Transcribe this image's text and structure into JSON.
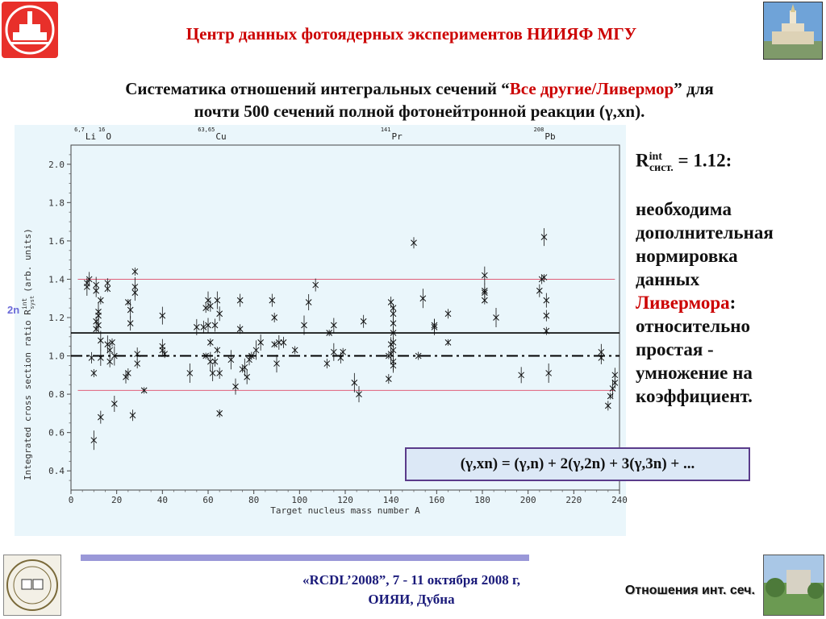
{
  "header": {
    "title": "Центр данных фотоядерных экспериментов НИИЯФ МГУ"
  },
  "subtitle": {
    "part1": "Систематика отношений интегральных сечений “",
    "highlight": "Все другие/Ливермор",
    "part2": "” для",
    "line2": "почти 500 сечений полной фотонейтронной реакции (γ,xn)."
  },
  "side_mark": "2n",
  "right_panel": {
    "r_main": "R",
    "r_sup": "int",
    "r_sub": "сист.",
    "r_value": " = 1.12:",
    "line1": "необходима",
    "line2": "дополнительная",
    "line3": "нормировка",
    "line4": "данных",
    "livermore": "Ливермора",
    "colon": ":",
    "line6": "относительно",
    "line7": "простая -",
    "line8": "умножение на",
    "line9": "коэффициент."
  },
  "formula": "(γ,xn) = (γ,n) + 2(γ,2n) + 3(γ,3n) + ...",
  "footer": {
    "conference_line1": "«RCDL’2008”,  7 - 11 октября 2008 г,",
    "conference_line2": "ОИЯИ, Дубна",
    "slide_label": "Отношения инт. сеч."
  },
  "colors": {
    "title_red": "#cc0000",
    "pink_lines": "#e0607a",
    "formula_border": "#5a3b8a",
    "footer_bar": "#9a98d8"
  },
  "chart_data": {
    "type": "scatter",
    "xlabel": "Target nucleus mass number A",
    "ylabel": "Integrated cross section ratio R",
    "ylabel_sup": "int",
    "ylabel_sub": "syst",
    "ylabel_tail": "(arb. units)",
    "xlim": [
      0,
      240
    ],
    "ylim": [
      0.3,
      2.1
    ],
    "xticks": [
      0,
      20,
      40,
      60,
      80,
      100,
      120,
      140,
      160,
      180,
      200,
      220,
      240
    ],
    "yticks": [
      0.4,
      0.6,
      0.8,
      1.0,
      1.2,
      1.4,
      1.6,
      1.8,
      2.0
    ],
    "ytick_labels": [
      "0.4",
      "0.6",
      "0.8",
      "1.0",
      "1.2",
      "1.4",
      "1.6",
      "1.8",
      "2.0"
    ],
    "grid": false,
    "reference_lines": [
      {
        "y": 1.12,
        "style": "solid",
        "color": "#000000"
      },
      {
        "y": 1.0,
        "style": "dashdot",
        "color": "#000000"
      },
      {
        "y": 1.4,
        "style": "solid",
        "color": "#e0607a"
      },
      {
        "y": 0.82,
        "style": "solid",
        "color": "#e0607a"
      }
    ],
    "nuclide_labels": [
      {
        "x": 7,
        "sup": "6,7",
        "label": "Li"
      },
      {
        "x": 16,
        "sup": "16",
        "label": "O"
      },
      {
        "x": 64,
        "sup": "63,65",
        "label": "Cu"
      },
      {
        "x": 141,
        "sup": "141",
        "label": "Pr"
      },
      {
        "x": 208,
        "sup": "208",
        "label": "Pb"
      }
    ],
    "points": [
      [
        7,
        1.38
      ],
      [
        7,
        1.36
      ],
      [
        8,
        1.4
      ],
      [
        9,
        0.99
      ],
      [
        10,
        0.91
      ],
      [
        10,
        0.56
      ],
      [
        11,
        1.37
      ],
      [
        11,
        1.34
      ],
      [
        11,
        1.18
      ],
      [
        11,
        1.14
      ],
      [
        12,
        1.23
      ],
      [
        12,
        1.21
      ],
      [
        12,
        1.16
      ],
      [
        13,
        1.29
      ],
      [
        13,
        1.08
      ],
      [
        13,
        0.99
      ],
      [
        13,
        0.68
      ],
      [
        16,
        1.38
      ],
      [
        16,
        1.35
      ],
      [
        16,
        1.06
      ],
      [
        17,
        1.03
      ],
      [
        17,
        0.97
      ],
      [
        18,
        1.07
      ],
      [
        19,
        1.0
      ],
      [
        19,
        0.75
      ],
      [
        24,
        0.89
      ],
      [
        25,
        0.91
      ],
      [
        25,
        1.28
      ],
      [
        26,
        1.24
      ],
      [
        26,
        1.17
      ],
      [
        27,
        0.69
      ],
      [
        28,
        1.44
      ],
      [
        28,
        1.36
      ],
      [
        28,
        1.33
      ],
      [
        29,
        1.01
      ],
      [
        29,
        0.96
      ],
      [
        32,
        0.82
      ],
      [
        40,
        1.21
      ],
      [
        40,
        1.05
      ],
      [
        40,
        1.03
      ],
      [
        41,
        1.01
      ],
      [
        52,
        0.91
      ],
      [
        55,
        1.15
      ],
      [
        58,
        1.15
      ],
      [
        59,
        1.25
      ],
      [
        59,
        1.0
      ],
      [
        60,
        1.29
      ],
      [
        60,
        1.16
      ],
      [
        61,
        1.26
      ],
      [
        61,
        1.07
      ],
      [
        61,
        0.97
      ],
      [
        62,
        0.91
      ],
      [
        63,
        1.16
      ],
      [
        63,
        0.97
      ],
      [
        64,
        1.03
      ],
      [
        64,
        1.29
      ],
      [
        65,
        1.22
      ],
      [
        65,
        0.91
      ],
      [
        65,
        0.7
      ],
      [
        70,
        0.98
      ],
      [
        72,
        0.84
      ],
      [
        74,
        1.29
      ],
      [
        74,
        1.14
      ],
      [
        75,
        0.93
      ],
      [
        76,
        0.94
      ],
      [
        77,
        0.89
      ],
      [
        78,
        0.98
      ],
      [
        79,
        1.0
      ],
      [
        81,
        1.03
      ],
      [
        83,
        1.07
      ],
      [
        88,
        1.29
      ],
      [
        89,
        1.2
      ],
      [
        89,
        1.06
      ],
      [
        90,
        0.96
      ],
      [
        91,
        1.07
      ],
      [
        93,
        1.07
      ],
      [
        98,
        1.03
      ],
      [
        102,
        1.16
      ],
      [
        104,
        1.28
      ],
      [
        107,
        1.37
      ],
      [
        112,
        0.96
      ],
      [
        113,
        1.12
      ],
      [
        115,
        1.02
      ],
      [
        115,
        1.16
      ],
      [
        118,
        0.99
      ],
      [
        119,
        1.02
      ],
      [
        124,
        0.86
      ],
      [
        126,
        0.8
      ],
      [
        128,
        1.18
      ],
      [
        139,
        0.88
      ],
      [
        139,
        1.0
      ],
      [
        140,
        1.01
      ],
      [
        140,
        1.06
      ],
      [
        140,
        1.28
      ],
      [
        141,
        1.25
      ],
      [
        141,
        1.22
      ],
      [
        141,
        1.17
      ],
      [
        141,
        1.12
      ],
      [
        141,
        1.07
      ],
      [
        141,
        1.03
      ],
      [
        141,
        0.97
      ],
      [
        141,
        0.95
      ],
      [
        150,
        1.59
      ],
      [
        152,
        1.0
      ],
      [
        154,
        1.3
      ],
      [
        159,
        1.15
      ],
      [
        159,
        1.16
      ],
      [
        165,
        1.22
      ],
      [
        165,
        1.07
      ],
      [
        181,
        1.42
      ],
      [
        181,
        1.34
      ],
      [
        181,
        1.33
      ],
      [
        181,
        1.29
      ],
      [
        186,
        1.2
      ],
      [
        197,
        0.9
      ],
      [
        205,
        1.34
      ],
      [
        206,
        1.4
      ],
      [
        207,
        1.41
      ],
      [
        207,
        1.62
      ],
      [
        208,
        1.29
      ],
      [
        208,
        1.21
      ],
      [
        208,
        1.13
      ],
      [
        209,
        0.91
      ],
      [
        232,
        1.02
      ],
      [
        232,
        0.99
      ],
      [
        235,
        0.74
      ],
      [
        236,
        0.79
      ],
      [
        237,
        0.83
      ],
      [
        238,
        0.9
      ],
      [
        238,
        0.86
      ]
    ]
  }
}
